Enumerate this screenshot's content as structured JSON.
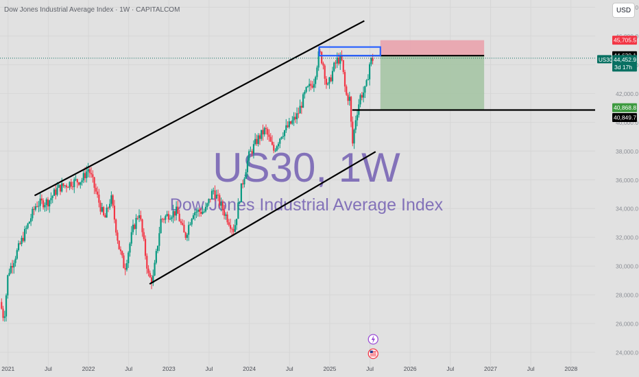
{
  "header": {
    "title": "Dow Jones Industrial Average Index · 1W · CAPITALCOM",
    "currency_button": "USD"
  },
  "watermark": {
    "symbol": "US30, 1W",
    "name": "Dow Jones Industrial Average Index",
    "color": "#7d6bb6"
  },
  "colors": {
    "background": "#e1e1e1",
    "up_candle": "#089981",
    "down_candle": "#f23645",
    "trendline": "#000000",
    "stop_zone": "#eaa3ad",
    "target_zone": "#a9c6a8",
    "blue_box": "#2962ff"
  },
  "price_labels": {
    "stop": {
      "text": "45,705.5",
      "color": "#f23645"
    },
    "entry": {
      "text": "44,630.1",
      "color": "#000000"
    },
    "current": {
      "text": "44,452.9",
      "sub": "3d 17h",
      "color": "#087062"
    },
    "symbol_tag": "US30",
    "target": {
      "text": "40,868.8",
      "color": "#3d9a3f"
    },
    "line_level": {
      "text": "40,849.7",
      "color": "#000000"
    }
  },
  "event_icons": [
    "lightning-icon",
    "us-flag-icon"
  ],
  "chart_data": {
    "type": "candlestick",
    "title": "Dow Jones Industrial Average Index · 1W · CAPITALCOM",
    "symbol": "US30",
    "timeframe": "1W",
    "y_range": [
      23000,
      48500
    ],
    "y_ticks": [
      24000,
      26000,
      28000,
      30000,
      32000,
      34000,
      36000,
      38000,
      40000,
      42000,
      44000,
      46000,
      48000
    ],
    "y_tick_labels": [
      "24,000.0",
      "26,000.0",
      "28,000.0",
      "30,000.0",
      "32,000.0",
      "34,000.0",
      "36,000.0",
      "38,000.0",
      "40,000.0",
      "42,000.0",
      "44,000.0",
      "46,000.0",
      "48,000.0"
    ],
    "x_range": [
      2020.9,
      2028.3
    ],
    "x_ticks": [
      {
        "t": 2021.0,
        "label": "2021"
      },
      {
        "t": 2021.5,
        "label": "Jul"
      },
      {
        "t": 2022.0,
        "label": "2022"
      },
      {
        "t": 2022.5,
        "label": "Jul"
      },
      {
        "t": 2023.0,
        "label": "2023"
      },
      {
        "t": 2023.5,
        "label": "Jul"
      },
      {
        "t": 2024.0,
        "label": "2024"
      },
      {
        "t": 2024.5,
        "label": "Jul"
      },
      {
        "t": 2025.0,
        "label": "2025"
      },
      {
        "t": 2025.5,
        "label": "Jul"
      },
      {
        "t": 2026.0,
        "label": "2026"
      },
      {
        "t": 2026.5,
        "label": "Jul"
      },
      {
        "t": 2027.0,
        "label": "2027"
      },
      {
        "t": 2027.5,
        "label": "Jul"
      },
      {
        "t": 2028.0,
        "label": "2028"
      }
    ],
    "anchors": [
      [
        2020.9,
        27500
      ],
      [
        2020.95,
        26300
      ],
      [
        2021.0,
        29500
      ],
      [
        2021.15,
        31500
      ],
      [
        2021.35,
        34300
      ],
      [
        2021.5,
        34500
      ],
      [
        2021.62,
        35400
      ],
      [
        2021.78,
        35800
      ],
      [
        2021.92,
        36000
      ],
      [
        2022.0,
        36800
      ],
      [
        2022.1,
        35000
      ],
      [
        2022.2,
        33200
      ],
      [
        2022.28,
        34800
      ],
      [
        2022.38,
        31300
      ],
      [
        2022.45,
        29800
      ],
      [
        2022.55,
        32500
      ],
      [
        2022.63,
        33800
      ],
      [
        2022.75,
        29200
      ],
      [
        2022.8,
        29000
      ],
      [
        2022.9,
        33200
      ],
      [
        2023.0,
        33600
      ],
      [
        2023.1,
        33800
      ],
      [
        2023.2,
        32000
      ],
      [
        2023.3,
        33800
      ],
      [
        2023.45,
        33800
      ],
      [
        2023.55,
        35300
      ],
      [
        2023.7,
        33600
      ],
      [
        2023.81,
        32500
      ],
      [
        2023.9,
        35400
      ],
      [
        2023.99,
        37600
      ],
      [
        2024.1,
        38800
      ],
      [
        2024.2,
        39500
      ],
      [
        2024.3,
        38000
      ],
      [
        2024.4,
        39200
      ],
      [
        2024.5,
        39800
      ],
      [
        2024.6,
        40500
      ],
      [
        2024.7,
        42100
      ],
      [
        2024.8,
        42800
      ],
      [
        2024.87,
        44900
      ],
      [
        2024.92,
        44000
      ],
      [
        2024.97,
        42300
      ],
      [
        2025.05,
        43800
      ],
      [
        2025.1,
        44400
      ],
      [
        2025.15,
        44200
      ],
      [
        2025.2,
        41900
      ],
      [
        2025.25,
        41600
      ],
      [
        2025.28,
        38300
      ],
      [
        2025.32,
        40200
      ],
      [
        2025.38,
        41800
      ],
      [
        2025.45,
        42300
      ],
      [
        2025.5,
        44200
      ],
      [
        2025.54,
        44450
      ]
    ],
    "trendlines": [
      {
        "name": "upper-channel-line",
        "p1": [
          2021.33,
          34900
        ],
        "p2": [
          2025.43,
          47050
        ]
      },
      {
        "name": "lower-channel-line",
        "p1": [
          2022.76,
          28750
        ],
        "p2": [
          2025.57,
          37950
        ]
      }
    ],
    "horizontal_lines": [
      {
        "name": "entry-level",
        "price": 44630.1,
        "t_start": 2025.1,
        "t_end": 2026.92
      },
      {
        "name": "target-level",
        "price": 40849.7,
        "t_start": 2025.28,
        "t_end": 2028.3
      }
    ],
    "position": {
      "type": "short",
      "entry": 44630.1,
      "stop": 45705.5,
      "target": 40868.8,
      "t_start": 2025.63,
      "t_end": 2026.92
    },
    "highlight_box": {
      "t_start": 2024.87,
      "t_end": 2025.63,
      "price_low": 44630,
      "price_high": 45230
    },
    "current_price": 44452.9
  }
}
